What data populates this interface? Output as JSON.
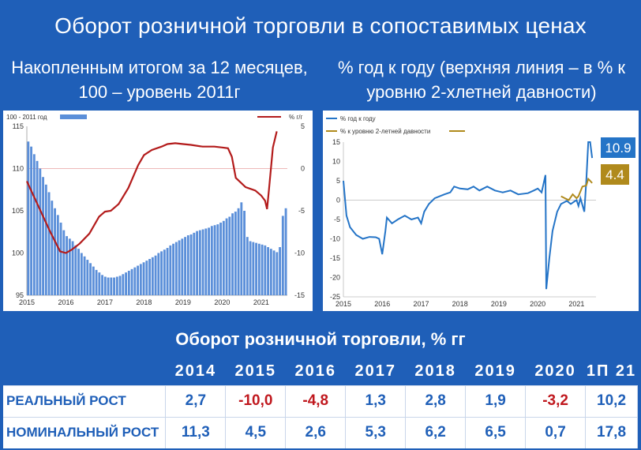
{
  "title": "Оборот розничной торговли в сопоставимых ценах",
  "left_subtitle": "Накопленным итогом за 12 месяцев, 100 – уровень 2011г",
  "right_subtitle": "% год к году (верхняя линия – в % к уровню 2-хлетней давности)",
  "chart_data": [
    {
      "type": "bar",
      "legend": [
        "100 - 2011 год",
        "% г/г"
      ],
      "x_ticks": [
        "2015",
        "2016",
        "2017",
        "2018",
        "2019",
        "2020",
        "2021"
      ],
      "y_left_ticks": [
        "95",
        "100",
        "105",
        "110",
        "115"
      ],
      "y_right_ticks": [
        "-15",
        "-10",
        "-5",
        "0",
        "5"
      ],
      "ylim_left": [
        95,
        115
      ],
      "ylim_right": [
        -15,
        5
      ],
      "colors": {
        "bars": "#5b8fd9",
        "line": "#b31b1b",
        "zero_line": "#e8a0a0"
      },
      "series": [
        {
          "name": "100 - 2011 год",
          "axis": "left",
          "values": [
            113.2,
            112.6,
            111.7,
            110.9,
            110.0,
            109.0,
            108.1,
            107.2,
            106.2,
            105.3,
            104.5,
            103.6,
            102.7,
            102.0,
            101.7,
            101.4,
            100.9,
            100.5,
            100.0,
            99.6,
            99.2,
            98.8,
            98.4,
            98.0,
            97.7,
            97.4,
            97.2,
            97.1,
            97.1,
            97.1,
            97.2,
            97.3,
            97.5,
            97.7,
            97.9,
            98.1,
            98.3,
            98.5,
            98.7,
            98.9,
            99.1,
            99.3,
            99.5,
            99.7,
            100.0,
            100.2,
            100.4,
            100.6,
            100.9,
            101.1,
            101.3,
            101.5,
            101.7,
            101.9,
            102.1,
            102.2,
            102.4,
            102.6,
            102.7,
            102.8,
            102.9,
            103.0,
            103.2,
            103.3,
            103.4,
            103.6,
            103.8,
            104.1,
            104.3,
            104.7,
            104.9,
            105.3,
            106.0,
            105.0,
            101.9,
            101.4,
            101.3,
            101.2,
            101.1,
            101.0,
            100.9,
            100.7,
            100.5,
            100.3,
            100.1,
            100.7,
            104.4,
            105.3
          ]
        },
        {
          "name": "% г/г",
          "axis": "right",
          "points": [
            [
              2015.0,
              -1.5
            ],
            [
              2015.3,
              -4.5
            ],
            [
              2015.6,
              -7.5
            ],
            [
              2015.85,
              -9.8
            ],
            [
              2016.0,
              -10.0
            ],
            [
              2016.15,
              -9.6
            ],
            [
              2016.35,
              -8.9
            ],
            [
              2016.6,
              -7.7
            ],
            [
              2016.85,
              -5.7
            ],
            [
              2017.0,
              -5.1
            ],
            [
              2017.15,
              -5.0
            ],
            [
              2017.35,
              -4.2
            ],
            [
              2017.6,
              -2.3
            ],
            [
              2017.85,
              0.4
            ],
            [
              2018.0,
              1.6
            ],
            [
              2018.2,
              2.2
            ],
            [
              2018.45,
              2.6
            ],
            [
              2018.6,
              2.9
            ],
            [
              2018.8,
              3.0
            ],
            [
              2019.0,
              2.9
            ],
            [
              2019.2,
              2.8
            ],
            [
              2019.5,
              2.6
            ],
            [
              2019.8,
              2.6
            ],
            [
              2020.0,
              2.5
            ],
            [
              2020.15,
              2.4
            ],
            [
              2020.25,
              1.4
            ],
            [
              2020.35,
              -1.1
            ],
            [
              2020.6,
              -2.2
            ],
            [
              2020.85,
              -2.6
            ],
            [
              2021.0,
              -3.2
            ],
            [
              2021.1,
              -3.8
            ],
            [
              2021.15,
              -4.8
            ],
            [
              2021.2,
              -2.5
            ],
            [
              2021.3,
              2.5
            ],
            [
              2021.4,
              4.4
            ]
          ]
        }
      ]
    },
    {
      "type": "line",
      "legend": [
        "% год к году",
        "% к уровню 2-летней давности"
      ],
      "x_ticks": [
        "2015",
        "2016",
        "2017",
        "2018",
        "2019",
        "2020",
        "2021"
      ],
      "y_ticks": [
        "-25",
        "-20",
        "-15",
        "-10",
        "-5",
        "0",
        "5",
        "10",
        "15"
      ],
      "ylim": [
        -25,
        15
      ],
      "colors": {
        "yoy": "#2474c7",
        "two_year": "#b08a1c"
      },
      "end_labels": [
        {
          "value": "10.9",
          "color": "#2474c7"
        },
        {
          "value": "4.4",
          "color": "#b08a1c"
        }
      ],
      "series": [
        {
          "name": "% год к году",
          "points": [
            [
              2015.0,
              5.0
            ],
            [
              2015.08,
              -4.0
            ],
            [
              2015.17,
              -7.0
            ],
            [
              2015.33,
              -9.0
            ],
            [
              2015.5,
              -10.0
            ],
            [
              2015.67,
              -9.5
            ],
            [
              2015.83,
              -9.6
            ],
            [
              2015.92,
              -10.0
            ],
            [
              2016.0,
              -14.0
            ],
            [
              2016.08,
              -8.0
            ],
            [
              2016.12,
              -4.5
            ],
            [
              2016.25,
              -6.0
            ],
            [
              2016.4,
              -5.0
            ],
            [
              2016.58,
              -4.0
            ],
            [
              2016.75,
              -5.0
            ],
            [
              2016.92,
              -4.5
            ],
            [
              2017.0,
              -6.0
            ],
            [
              2017.08,
              -3.0
            ],
            [
              2017.2,
              -1.0
            ],
            [
              2017.35,
              0.5
            ],
            [
              2017.6,
              1.5
            ],
            [
              2017.75,
              2.0
            ],
            [
              2017.85,
              3.5
            ],
            [
              2018.0,
              3.0
            ],
            [
              2018.2,
              2.8
            ],
            [
              2018.35,
              3.5
            ],
            [
              2018.5,
              2.5
            ],
            [
              2018.7,
              3.5
            ],
            [
              2018.9,
              2.5
            ],
            [
              2019.1,
              2.0
            ],
            [
              2019.3,
              2.5
            ],
            [
              2019.5,
              1.5
            ],
            [
              2019.75,
              1.8
            ],
            [
              2019.9,
              2.5
            ],
            [
              2020.0,
              3.0
            ],
            [
              2020.1,
              2.0
            ],
            [
              2020.2,
              6.5
            ],
            [
              2020.22,
              -23.0
            ],
            [
              2020.3,
              -15.0
            ],
            [
              2020.38,
              -8.0
            ],
            [
              2020.5,
              -3.0
            ],
            [
              2020.6,
              -1.0
            ],
            [
              2020.75,
              -0.2
            ],
            [
              2020.85,
              -1.0
            ],
            [
              2020.95,
              -0.3
            ],
            [
              2021.0,
              0.0
            ],
            [
              2021.05,
              -1.5
            ],
            [
              2021.1,
              0.5
            ],
            [
              2021.2,
              -3.0
            ],
            [
              2021.25,
              5.0
            ],
            [
              2021.3,
              16.0
            ],
            [
              2021.35,
              16.0
            ],
            [
              2021.4,
              10.9
            ]
          ]
        },
        {
          "name": "% к уровню 2-летней давности",
          "points": [
            [
              2020.6,
              1.0
            ],
            [
              2020.7,
              0.5
            ],
            [
              2020.8,
              0.0
            ],
            [
              2020.9,
              1.5
            ],
            [
              2021.0,
              0.5
            ],
            [
              2021.05,
              1.0
            ],
            [
              2021.15,
              3.5
            ],
            [
              2021.25,
              3.8
            ],
            [
              2021.3,
              5.5
            ],
            [
              2021.35,
              5.0
            ],
            [
              2021.4,
              4.4
            ]
          ]
        }
      ]
    }
  ],
  "table": {
    "title": "Оборот розничной торговли, % гг",
    "headers": [
      "",
      "2014",
      "2015",
      "2016",
      "2017",
      "2018",
      "2019",
      "2020",
      "1П 21"
    ],
    "rows": [
      {
        "label": "РЕАЛЬНЫЙ РОСТ",
        "values": [
          "2,7",
          "-10,0",
          "-4,8",
          "1,3",
          "2,8",
          "1,9",
          "-3,2",
          "10,2"
        ]
      },
      {
        "label": "НОМИНАЛЬНЫЙ РОСТ",
        "values": [
          "11,3",
          "4,5",
          "2,6",
          "5,3",
          "6,2",
          "6,5",
          "0,7",
          "17,8"
        ]
      }
    ]
  }
}
